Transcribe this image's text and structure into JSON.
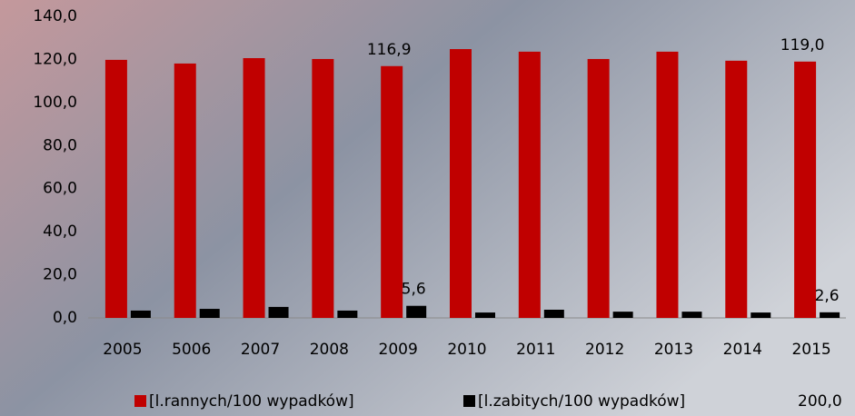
{
  "chart_data": {
    "type": "bar",
    "categories": [
      "2005",
      "5006",
      "2007",
      "2008",
      "2009",
      "2010",
      "2011",
      "2012",
      "2013",
      "2014",
      "2015"
    ],
    "series": [
      {
        "name": "[l.rannych/100 wypadków]",
        "color": "#c00000",
        "values": [
          119.8,
          118.1,
          120.6,
          120.2,
          116.9,
          124.8,
          123.6,
          120.2,
          123.6,
          119.4,
          119.0
        ],
        "value_labels": [
          null,
          null,
          null,
          null,
          "116,9",
          null,
          null,
          null,
          null,
          null,
          "119,0"
        ]
      },
      {
        "name": "[l.zabitych/100 wypadków]",
        "color": "#000000",
        "values": [
          3.4,
          4.2,
          5.1,
          3.4,
          5.6,
          2.5,
          3.8,
          2.9,
          2.9,
          2.5,
          2.6
        ],
        "value_labels": [
          null,
          null,
          null,
          null,
          "5,6",
          null,
          null,
          null,
          null,
          null,
          "2,6"
        ]
      },
      {
        "name": "200,0",
        "color": null,
        "values": [
          null,
          null,
          null,
          null,
          null,
          null,
          null,
          null,
          null,
          null,
          null
        ]
      }
    ],
    "ylim": [
      0,
      140
    ],
    "yticks": [
      {
        "value": 0,
        "label": "0,0"
      },
      {
        "value": 20,
        "label": "20,0"
      },
      {
        "value": 40,
        "label": "40,0"
      },
      {
        "value": 60,
        "label": "60,0"
      },
      {
        "value": 80,
        "label": "80,0"
      },
      {
        "value": 100,
        "label": "100,0"
      },
      {
        "value": 120,
        "label": "120,0"
      },
      {
        "value": 140,
        "label": "140,0"
      }
    ],
    "grid": false,
    "legend": "bottom"
  }
}
